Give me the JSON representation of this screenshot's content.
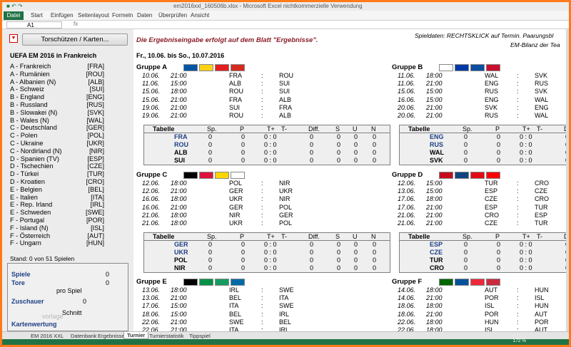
{
  "window": {
    "title": "em2016xxl_160506b.xlsx - Microsoft Excel nichtkommerzielle Verwendung"
  },
  "ribbon": {
    "file_tab": "Datei",
    "tabs": [
      "Start",
      "Einfügen",
      "Seitenlayout",
      "Formeln",
      "Daten",
      "Überprüfen",
      "Ansicht"
    ]
  },
  "formula_bar": {
    "cell_ref": "A1",
    "fx": "fx"
  },
  "toolbar": {
    "dropdown_icon": "chevron-down-icon",
    "protect_button": "Torschützen / Karten..."
  },
  "notice": "Die Ergebniseingabe erfolgt auf dem Blatt \"Ergebnisse\".",
  "hints": {
    "line1": "Spieldaten: RECHTSKLICK auf Termin.    Paarungsbl",
    "line2": "EM-Bilanz der Tea"
  },
  "tournament": {
    "title": "UEFA EM 2016 in Frankreich",
    "dates": "Fr., 10.06. bis So., 10.07.2016"
  },
  "teams": [
    {
      "name": "A - Frankreich",
      "abbr": "[FRA]"
    },
    {
      "name": "A - Rumänien",
      "abbr": "[ROU]"
    },
    {
      "name": "A - Albanien  (N)",
      "abbr": "[ALB]"
    },
    {
      "name": "A - Schweiz",
      "abbr": "[SUI]"
    },
    {
      "name": "B - England",
      "abbr": "[ENG]"
    },
    {
      "name": "B - Russland",
      "abbr": "[RUS]"
    },
    {
      "name": "B - Slowakei  (N)",
      "abbr": "[SVK]"
    },
    {
      "name": "B - Wales  (N)",
      "abbr": "[WAL]"
    },
    {
      "name": "C - Deutschland",
      "abbr": "[GER]"
    },
    {
      "name": "C - Polen",
      "abbr": "[POL]"
    },
    {
      "name": "C - Ukraine",
      "abbr": "[UKR]"
    },
    {
      "name": "C - Nordirland  (N)",
      "abbr": "[NIR]"
    },
    {
      "name": "D - Spanien  (TV)",
      "abbr": "[ESP]"
    },
    {
      "name": "D - Tschechien",
      "abbr": "[CZE]"
    },
    {
      "name": "D - Türkei",
      "abbr": "[TUR]"
    },
    {
      "name": "D - Kroatien",
      "abbr": "[CRO]"
    },
    {
      "name": "E - Belgien",
      "abbr": "[BEL]"
    },
    {
      "name": "E - Italien",
      "abbr": "[ITA]"
    },
    {
      "name": "E - Rep. Irland",
      "abbr": "[IRL]"
    },
    {
      "name": "E - Schweden",
      "abbr": "[SWE]"
    },
    {
      "name": "F - Portugal",
      "abbr": "[POR]"
    },
    {
      "name": "F - Island  (N)",
      "abbr": "[ISL]"
    },
    {
      "name": "F - Österreich",
      "abbr": "[AUT]"
    },
    {
      "name": "F - Ungarn",
      "abbr": "[HUN]"
    }
  ],
  "stand": "Stand: 0 von 51 Spielen",
  "stats": {
    "spiele_label": "Spiele",
    "spiele_value": "0",
    "tore_label": "Tore",
    "tore_value": "0",
    "pro_spiel": "pro Spiel",
    "zuschauer_label": "Zuschauer",
    "zuschauer_value": "0",
    "vorlage": "vorlage",
    "schnitt": "Schnitt",
    "karten_label": "Kartenwertung"
  },
  "table_headers": [
    "Tabelle",
    "Sp.",
    "P",
    "T+",
    "T-",
    "Diff.",
    "S",
    "U",
    "N"
  ],
  "groups": [
    {
      "name": "Gruppe A",
      "flags": [
        "#0055a4",
        "#fcd116",
        "#e41e20",
        "#d52b1e"
      ],
      "matches": [
        {
          "d": "10.06.",
          "t": "21:00",
          "h": "FRA",
          "a": "ROU"
        },
        {
          "d": "11.06.",
          "t": "15:00",
          "h": "ALB",
          "a": "SUI"
        },
        {
          "d": "15.06.",
          "t": "18:00",
          "h": "ROU",
          "a": "SUI"
        },
        {
          "d": "15.06.",
          "t": "21:00",
          "h": "FRA",
          "a": "ALB"
        },
        {
          "d": "19.06.",
          "t": "21:00",
          "h": "SUI",
          "a": "FRA"
        },
        {
          "d": "19.06.",
          "t": "21:00",
          "h": "ROU",
          "a": "ALB"
        }
      ],
      "table": [
        {
          "team": "FRA",
          "hl": true
        },
        {
          "team": "ROU",
          "hl": true
        },
        {
          "team": "ALB",
          "hl": false
        },
        {
          "team": "SUI",
          "hl": false
        }
      ]
    },
    {
      "name": "Gruppe B",
      "flags": [
        "#ffffff",
        "#0039a6",
        "#0b4ea2",
        "#c8102e"
      ],
      "matches": [
        {
          "d": "11.06.",
          "t": "18:00",
          "h": "WAL",
          "a": "SVK"
        },
        {
          "d": "11.06.",
          "t": "21:00",
          "h": "ENG",
          "a": "RUS"
        },
        {
          "d": "15.06.",
          "t": "15:00",
          "h": "RUS",
          "a": "SVK"
        },
        {
          "d": "16.06.",
          "t": "15:00",
          "h": "ENG",
          "a": "WAL"
        },
        {
          "d": "20.06.",
          "t": "21:00",
          "h": "SVK",
          "a": "ENG"
        },
        {
          "d": "20.06.",
          "t": "21:00",
          "h": "RUS",
          "a": "WAL"
        }
      ],
      "table": [
        {
          "team": "ENG",
          "hl": true
        },
        {
          "team": "RUS",
          "hl": true
        },
        {
          "team": "WAL",
          "hl": false
        },
        {
          "team": "SVK",
          "hl": false
        }
      ]
    },
    {
      "name": "Gruppe C",
      "flags": [
        "#000000",
        "#dc143c",
        "#ffd500",
        "#ffffff"
      ],
      "matches": [
        {
          "d": "12.06.",
          "t": "18:00",
          "h": "POL",
          "a": "NIR"
        },
        {
          "d": "12.06.",
          "t": "21:00",
          "h": "GER",
          "a": "UKR"
        },
        {
          "d": "16.06.",
          "t": "18:00",
          "h": "UKR",
          "a": "NIR"
        },
        {
          "d": "16.06.",
          "t": "21:00",
          "h": "GER",
          "a": "POL"
        },
        {
          "d": "21.06.",
          "t": "18:00",
          "h": "NIR",
          "a": "GER"
        },
        {
          "d": "21.06.",
          "t": "18:00",
          "h": "UKR",
          "a": "POL"
        }
      ],
      "table": [
        {
          "team": "GER",
          "hl": true
        },
        {
          "team": "UKR",
          "hl": true
        },
        {
          "team": "POL",
          "hl": false
        },
        {
          "team": "NIR",
          "hl": false
        }
      ]
    },
    {
      "name": "Gruppe D",
      "flags": [
        "#c60b1e",
        "#11457e",
        "#e30a17",
        "#ff0000"
      ],
      "matches": [
        {
          "d": "12.06.",
          "t": "15:00",
          "h": "TUR",
          "a": "CRO"
        },
        {
          "d": "13.06.",
          "t": "15:00",
          "h": "ESP",
          "a": "CZE"
        },
        {
          "d": "17.06.",
          "t": "18:00",
          "h": "CZE",
          "a": "CRO"
        },
        {
          "d": "17.06.",
          "t": "21:00",
          "h": "ESP",
          "a": "TUR"
        },
        {
          "d": "21.06.",
          "t": "21:00",
          "h": "CRO",
          "a": "ESP"
        },
        {
          "d": "21.06.",
          "t": "21:00",
          "h": "CZE",
          "a": "TUR"
        }
      ],
      "table": [
        {
          "team": "ESP",
          "hl": true
        },
        {
          "team": "CZE",
          "hl": true
        },
        {
          "team": "TUR",
          "hl": false
        },
        {
          "team": "CRO",
          "hl": false
        }
      ]
    },
    {
      "name": "Gruppe E",
      "flags": [
        "#000000",
        "#009246",
        "#169b62",
        "#006aa7"
      ],
      "matches": [
        {
          "d": "13.06.",
          "t": "18:00",
          "h": "IRL",
          "a": "SWE"
        },
        {
          "d": "13.06.",
          "t": "21:00",
          "h": "BEL",
          "a": "ITA"
        },
        {
          "d": "17.06.",
          "t": "15:00",
          "h": "ITA",
          "a": "SWE"
        },
        {
          "d": "18.06.",
          "t": "15:00",
          "h": "BEL",
          "a": "IRL"
        },
        {
          "d": "22.06.",
          "t": "21:00",
          "h": "SWE",
          "a": "BEL"
        },
        {
          "d": "22.06.",
          "t": "21:00",
          "h": "ITA",
          "a": "IRL"
        }
      ]
    },
    {
      "name": "Gruppe F",
      "flags": [
        "#006600",
        "#02529c",
        "#ed2939",
        "#cd2a3e"
      ],
      "matches": [
        {
          "d": "14.06.",
          "t": "18:00",
          "h": "AUT",
          "a": "HUN"
        },
        {
          "d": "14.06.",
          "t": "21:00",
          "h": "POR",
          "a": "ISL"
        },
        {
          "d": "18.06.",
          "t": "18:00",
          "h": "ISL",
          "a": "HUN"
        },
        {
          "d": "18.06.",
          "t": "21:00",
          "h": "POR",
          "a": "AUT"
        },
        {
          "d": "22.06.",
          "t": "18:00",
          "h": "HUN",
          "a": "POR"
        },
        {
          "d": "22.06.",
          "t": "18:00",
          "h": "ISL",
          "a": "AUT"
        }
      ]
    }
  ],
  "sheet_tabs": [
    "EM 2016 XXL",
    "Datenbank",
    "Ergebnisse",
    "Turnier",
    "Turnierstatistik",
    "Tippspiel"
  ],
  "active_sheet": "Turnier",
  "zoom": "172 %"
}
